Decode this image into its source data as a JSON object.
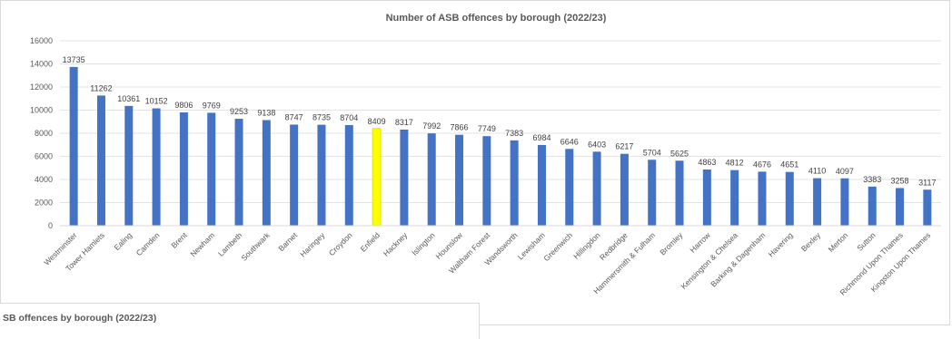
{
  "chart_data": {
    "type": "bar",
    "title": "Number of ASB offences by borough (2022/23)",
    "xlabel": "",
    "ylabel": "",
    "ylim": [
      0,
      16000
    ],
    "yticks": [
      0,
      2000,
      4000,
      6000,
      8000,
      10000,
      12000,
      14000,
      16000
    ],
    "grid": true,
    "legend": "none",
    "colors": {
      "default": "#4472c4",
      "highlight": "#ffff00",
      "highlight_outline": "#c9c900"
    },
    "highlight_category": "Enfield",
    "categories": [
      "Westminster",
      "Tower Hamlets",
      "Ealing",
      "Camden",
      "Brent",
      "Newham",
      "Lambeth",
      "Southwark",
      "Barnet",
      "Haringey",
      "Croydon",
      "Enfield",
      "Hackney",
      "Islington",
      "Hounslow",
      "Waltham Forest",
      "Wandsworth",
      "Lewisham",
      "Greenwich",
      "Hillingdon",
      "Redbridge",
      "Hammersmith & Fulham",
      "Bromley",
      "Harrow",
      "Kensington & Chelsea",
      "Barking & Dagenham",
      "Havering",
      "Bexley",
      "Merton",
      "Sutton",
      "Richmond Upon Thames",
      "Kingston Upon Thames"
    ],
    "values": [
      13735,
      11262,
      10361,
      10152,
      9806,
      9769,
      9253,
      9138,
      8747,
      8735,
      8704,
      8409,
      8317,
      7992,
      7866,
      7749,
      7383,
      6984,
      6646,
      6403,
      6217,
      5704,
      5625,
      4863,
      4812,
      4676,
      4651,
      4110,
      4097,
      3383,
      3258,
      3117
    ]
  },
  "secondary_chart": {
    "title_fragment": "SB offences by borough (2022/23)"
  }
}
